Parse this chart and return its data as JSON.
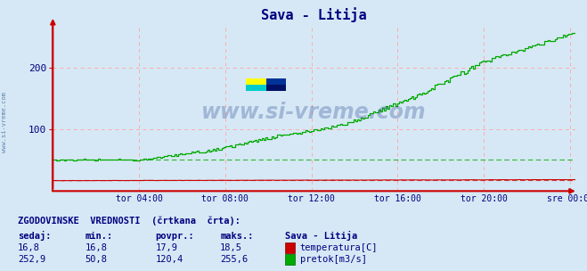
{
  "title": "Sava - Litija",
  "title_color": "#000080",
  "bg_color": "#d6e8f5",
  "grid_color": "#ffaaaa",
  "x_label_color": "#000080",
  "y_label_color": "#000080",
  "watermark_text": "www.si-vreme.com",
  "watermark_color": "#1a3a8a",
  "x_ticks_labels": [
    "tor 04:00",
    "tor 08:00",
    "tor 12:00",
    "tor 16:00",
    "tor 20:00",
    "sre 00:00"
  ],
  "x_ticks_fracs": [
    0.165,
    0.33,
    0.495,
    0.66,
    0.825,
    0.99
  ],
  "y_ticks": [
    100,
    200
  ],
  "y_range": [
    0,
    270
  ],
  "temp_color": "#cc0000",
  "flow_color": "#00aa00",
  "axis_color": "#cc0000",
  "bottom_text_color": "#000080",
  "sedaj_temp": "16,8",
  "min_temp": "16,8",
  "povpr_temp": "17,9",
  "maks_temp": "18,5",
  "sedaj_flow": "252,9",
  "min_flow": "50,8",
  "povpr_flow": "120,4",
  "maks_flow": "255,6",
  "logo_colors": [
    "#ffff00",
    "#00cccc",
    "#003399",
    "#0000bb"
  ],
  "n_points": 288
}
